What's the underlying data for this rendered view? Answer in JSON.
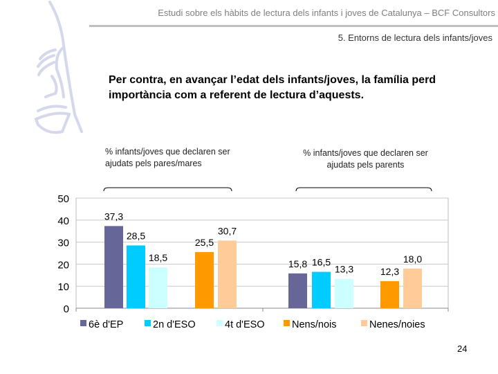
{
  "header": {
    "title": "Estudi sobre els hàbits de lectura dels infants i joves de Catalunya – BCF Consultors",
    "section": "5. Entorns de lectura dels infants/joves"
  },
  "slide": {
    "title": "Per contra, en avançar l’edat dels infants/joves, la família perd importància com a referent de lectura d’aquests.",
    "page_number": "24"
  },
  "chart_data": {
    "type": "bar",
    "groups": [
      {
        "label": "% infants/joves que declaren ser ajudats pels pares/mares"
      },
      {
        "label": "% infants/joves que declaren ser ajudats pels parents"
      }
    ],
    "series": [
      {
        "name": "6è d'EP",
        "color": "#666699",
        "values": [
          37.3,
          15.8
        ],
        "labels": [
          "37,3",
          "15,8"
        ]
      },
      {
        "name": "2n d'ESO",
        "color": "#00CCFF",
        "values": [
          28.5,
          16.5
        ],
        "labels": [
          "28,5",
          "16,5"
        ]
      },
      {
        "name": "4t d'ESO",
        "color": "#CCFFFF",
        "values": [
          18.5,
          13.3
        ],
        "labels": [
          "18,5",
          "13,3"
        ]
      },
      {
        "name": "Nens/nois",
        "color": "#FF9900",
        "values": [
          25.5,
          12.3
        ],
        "labels": [
          "25,5",
          "12,3"
        ]
      },
      {
        "name": "Nenes/noies",
        "color": "#FFCC99",
        "values": [
          30.7,
          18.0
        ],
        "labels": [
          "30,7",
          "18,0"
        ]
      }
    ],
    "yticks": [
      "0",
      "10",
      "20",
      "30",
      "40",
      "50"
    ],
    "ylim": [
      0,
      50
    ],
    "grid": true,
    "legend": "bottom"
  }
}
